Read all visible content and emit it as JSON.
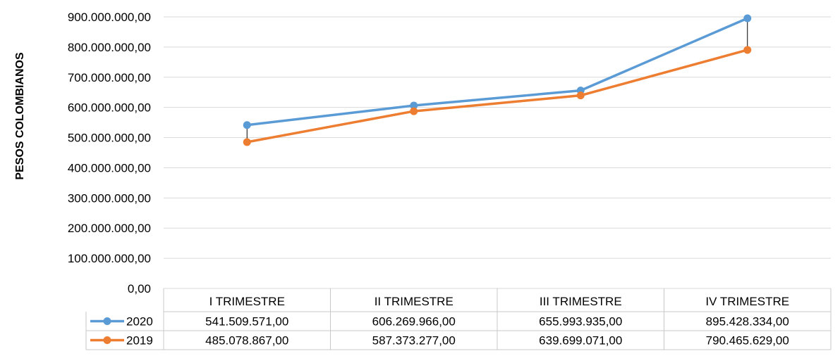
{
  "chart_data": {
    "type": "line",
    "ylabel": "PESOS COLOMBIANOS",
    "xlabel": "",
    "ylim": [
      0,
      900000000
    ],
    "ytick_labels": [
      "0,00",
      "100.000.000,00",
      "200.000.000,00",
      "300.000.000,00",
      "400.000.000,00",
      "500.000.000,00",
      "600.000.000,00",
      "700.000.000,00",
      "800.000.000,00",
      "900.000.000,00"
    ],
    "categories": [
      "I TRIMESTRE",
      "II TRIMESTRE",
      "III TRIMESTRE",
      "IV TRIMESTRE"
    ],
    "series": [
      {
        "name": "2020",
        "color": "#5b9bd5",
        "values": [
          541509571,
          606269966,
          655993935,
          895428334
        ],
        "labels": [
          "541.509.571,00",
          "606.269.966,00",
          "655.993.935,00",
          "895.428.334,00"
        ]
      },
      {
        "name": "2019",
        "color": "#ed7d31",
        "values": [
          485078867,
          587373277,
          639699071,
          790465629
        ],
        "labels": [
          "485.078.867,00",
          "587.373.277,00",
          "639.699.071,00",
          "790.465.629,00"
        ]
      }
    ],
    "grid": true,
    "high_low_lines": true,
    "legend": "data-table"
  }
}
